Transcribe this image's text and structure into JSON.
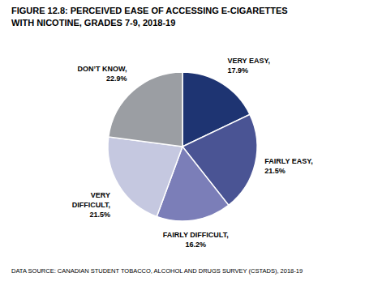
{
  "chart_data": {
    "type": "pie",
    "title": "FIGURE 12.8: PERCEIVED EASE OF ACCESSING E-CIGARETTES",
    "subtitle": "WITH NICOTINE, GRADES 7-9, 2018-19",
    "categories": [
      "VERY EASY,",
      "FAIRLY EASY,",
      "FAIRLY DIFFICULT,",
      "VERY\nDIFFICULT,",
      "DON’T KNOW,"
    ],
    "values": [
      17.9,
      21.5,
      16.2,
      21.5,
      22.9
    ],
    "value_labels": [
      "17.9%",
      "21.5%",
      "16.2%",
      "21.5%",
      "22.9%"
    ],
    "data_labels": true,
    "colors": [
      "#1e3472",
      "#4a5494",
      "#7b7eb8",
      "#c5c8e0",
      "#9b9ea3"
    ],
    "annotations": [
      "DATA SOURCE: CANADIAN STUDENT TOBACCO, ALCOHOL AND DRUGS SURVEY (CSTADS), 2018-19"
    ]
  }
}
